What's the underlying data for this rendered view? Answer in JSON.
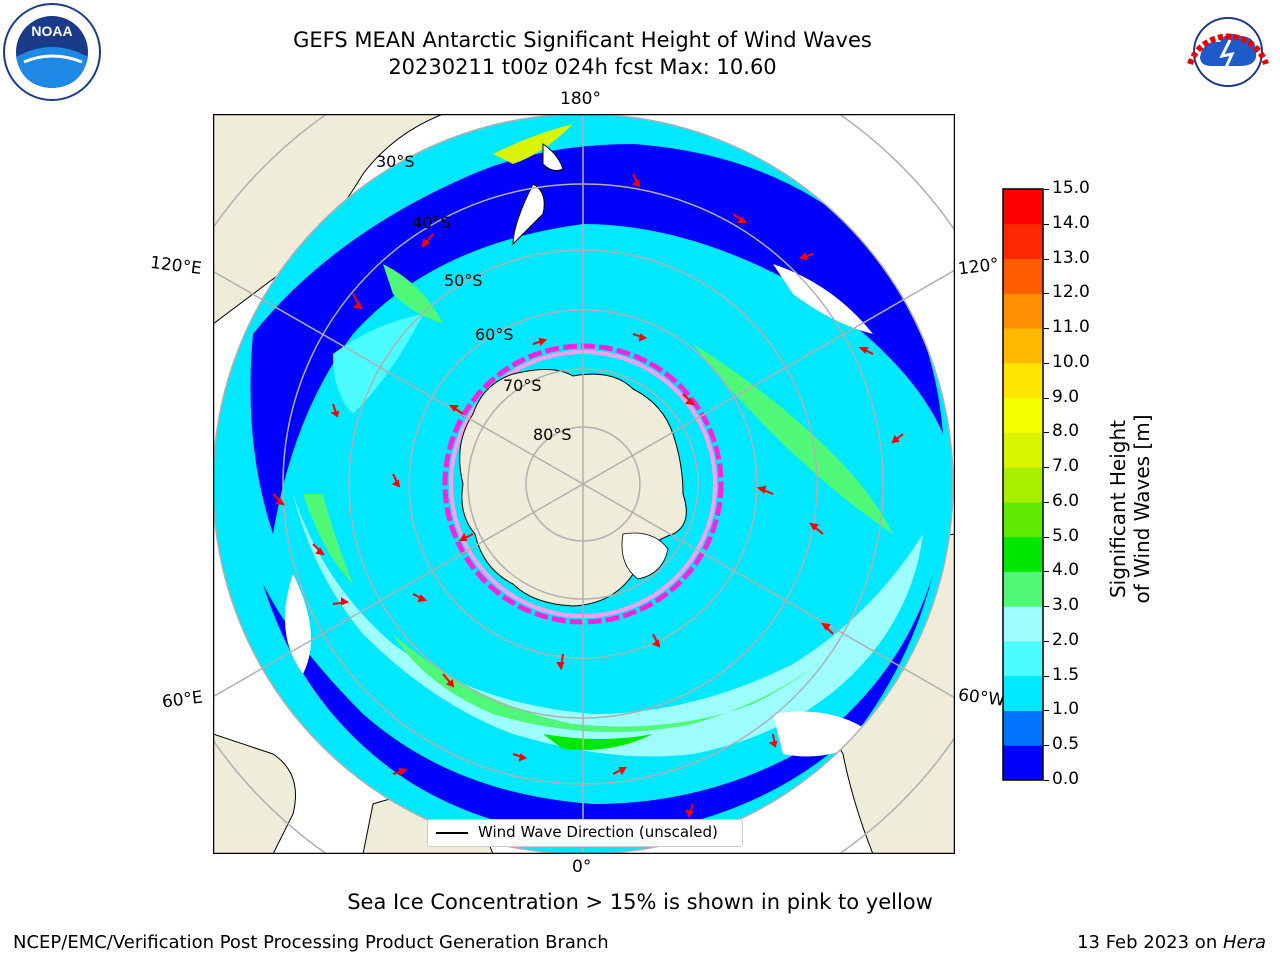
{
  "header": {
    "title_line1": "GEFS MEAN Antarctic Significant Height of Wind Waves",
    "title_line2": "20230211 t00z 024h fcst   Max: 10.60"
  },
  "map": {
    "longitude_labels": {
      "top": "180°",
      "bottom": "0°",
      "left_upper": "120°E",
      "right_upper": "120°",
      "left_lower": "60°E",
      "right_lower": "60°W"
    },
    "latitude_labels": [
      "30°S",
      "40°S",
      "50°S",
      "60°S",
      "70°S",
      "80°S"
    ],
    "legend_label": "Wind Wave Direction (unscaled)",
    "ocean_color": "#ffffff",
    "land_color": "#efedd9",
    "arrow_color": "#ff0000"
  },
  "colorbar": {
    "title": "Significant Height of Wind Waves [m]",
    "ticks": [
      "0.0",
      "0.5",
      "1.0",
      "1.5",
      "2.0",
      "3.0",
      "4.0",
      "5.0",
      "6.0",
      "7.0",
      "8.0",
      "9.0",
      "10.0",
      "11.0",
      "12.0",
      "13.0",
      "14.0",
      "15.0"
    ],
    "colors": [
      "#0000ff",
      "#0074ff",
      "#00e8ff",
      "#4cfdff",
      "#9efeff",
      "#50f878",
      "#00e800",
      "#60e800",
      "#a8ee00",
      "#d8f400",
      "#f4fe00",
      "#ffe400",
      "#ffba00",
      "#ff8e00",
      "#ff5c00",
      "#ff2800",
      "#ff0000"
    ]
  },
  "footer": {
    "note": "Sea Ice Concentration > 15% is shown in pink to yellow",
    "credit": "NCEP/EMC/Verification Post Processing Product Generation Branch",
    "date_prefix": "13 Feb 2023 on ",
    "date_host": "Hera"
  },
  "logos": {
    "left": "NOAA",
    "right": "NATIONAL WEATHER SERVICE"
  }
}
